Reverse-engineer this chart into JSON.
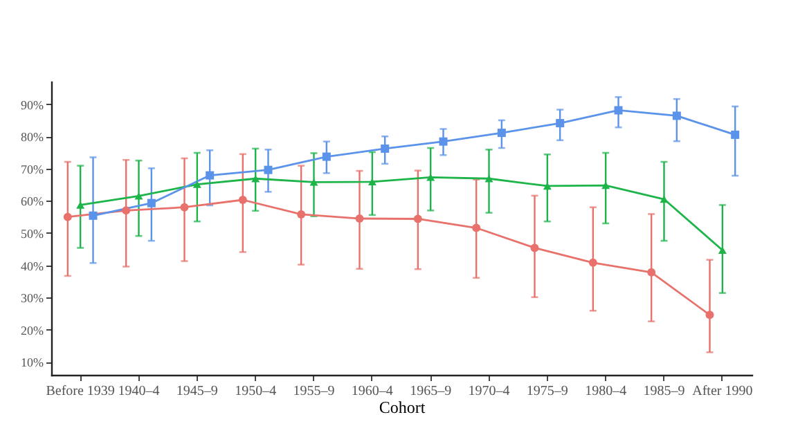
{
  "chart_data": {
    "type": "line",
    "xlabel": "Cohort",
    "categories": [
      "Before 1939",
      "1940–4",
      "1945–9",
      "1950–4",
      "1955–9",
      "1960–4",
      "1965–9",
      "1970–4",
      "1975–9",
      "1980–4",
      "1985–9",
      "After 1990"
    ],
    "ylim": [
      6,
      97
    ],
    "yticks": [
      {
        "value": 10,
        "label": "10%"
      },
      {
        "value": 20,
        "label": "20%"
      },
      {
        "value": 30,
        "label": "30%"
      },
      {
        "value": 40,
        "label": "40%"
      },
      {
        "value": 50,
        "label": "50%"
      },
      {
        "value": 60,
        "label": "60%"
      },
      {
        "value": 70,
        "label": "70%"
      },
      {
        "value": 80,
        "label": "80%"
      },
      {
        "value": 90,
        "label": "90%"
      }
    ],
    "grid": false,
    "legend": false,
    "line_style": "solid",
    "series": [
      {
        "color": "#e8716b",
        "marker": "circle",
        "values": [
          55,
          57,
          58,
          60.3,
          55.8,
          54.5,
          54.4,
          51.6,
          45.4,
          40.8,
          37.8,
          24.6
        ],
        "errors": [
          [
            36.7,
            72.1
          ],
          [
            39.6,
            72.7
          ],
          [
            41.3,
            73.2
          ],
          [
            44.1,
            74.5
          ],
          [
            40.2,
            70.9
          ],
          [
            38.9,
            69.3
          ],
          [
            38.8,
            69.4
          ],
          [
            36.1,
            66.6
          ],
          [
            30.1,
            61.6
          ],
          [
            25.9,
            58
          ],
          [
            22.6,
            55.9
          ],
          [
            13,
            41.7
          ]
        ]
      },
      {
        "color": "#1db44a",
        "marker": "triangle",
        "values": [
          58.7,
          61.5,
          65.1,
          66.9,
          65.8,
          65.9,
          67.3,
          66.9,
          64.6,
          64.8,
          60.5,
          44.7
        ],
        "errors": [
          [
            45.4,
            70.9
          ],
          [
            49.1,
            72.5
          ],
          [
            53.6,
            74.9
          ],
          [
            56.9,
            76.2
          ],
          [
            55.2,
            74.8
          ],
          [
            55.6,
            75.1
          ],
          [
            57,
            76.4
          ],
          [
            56.3,
            75.9
          ],
          [
            53.6,
            74.4
          ],
          [
            53,
            74.9
          ],
          [
            47.6,
            72.1
          ],
          [
            31.4,
            58.7
          ]
        ]
      },
      {
        "color": "#5b93ea",
        "marker": "square",
        "values": [
          55.4,
          59.3,
          67.9,
          69.6,
          73.7,
          76.2,
          78.4,
          81.1,
          84.1,
          88.1,
          86.4,
          80.5
        ],
        "errors": [
          [
            40.7,
            73.5
          ],
          [
            47.6,
            70.1
          ],
          [
            58.6,
            75.7
          ],
          [
            62.8,
            75.9
          ],
          [
            68.6,
            78.4
          ],
          [
            71.5,
            80
          ],
          [
            74.2,
            82.3
          ],
          [
            76.4,
            85
          ],
          [
            78.8,
            88.3
          ],
          [
            82.8,
            92.2
          ],
          [
            78.5,
            91.6
          ],
          [
            67.8,
            89.3
          ]
        ]
      }
    ]
  }
}
